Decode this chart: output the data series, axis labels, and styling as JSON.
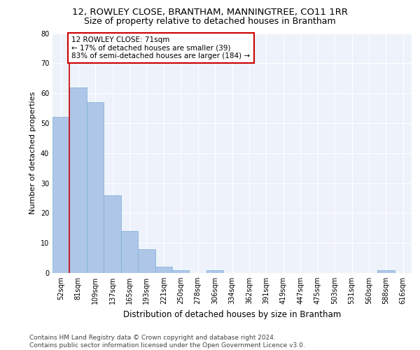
{
  "title1": "12, ROWLEY CLOSE, BRANTHAM, MANNINGTREE, CO11 1RR",
  "title2": "Size of property relative to detached houses in Brantham",
  "xlabel": "Distribution of detached houses by size in Brantham",
  "ylabel": "Number of detached properties",
  "categories": [
    "52sqm",
    "81sqm",
    "109sqm",
    "137sqm",
    "165sqm",
    "193sqm",
    "221sqm",
    "250sqm",
    "278sqm",
    "306sqm",
    "334sqm",
    "362sqm",
    "391sqm",
    "419sqm",
    "447sqm",
    "475sqm",
    "503sqm",
    "531sqm",
    "560sqm",
    "588sqm",
    "616sqm"
  ],
  "values": [
    52,
    62,
    57,
    26,
    14,
    8,
    2,
    1,
    0,
    1,
    0,
    0,
    0,
    0,
    0,
    0,
    0,
    0,
    0,
    1,
    0
  ],
  "bar_color": "#aec6e8",
  "bar_edge_color": "#7aafd4",
  "annotation_box_text": "12 ROWLEY CLOSE: 71sqm\n← 17% of detached houses are smaller (39)\n83% of semi-detached houses are larger (184) →",
  "annotation_box_color": "#ffffff",
  "annotation_box_edge_color": "#cc0000",
  "vline_color": "#cc0000",
  "vline_x_index": 1,
  "ylim": [
    0,
    80
  ],
  "yticks": [
    0,
    10,
    20,
    30,
    40,
    50,
    60,
    70,
    80
  ],
  "background_color": "#eef2fa",
  "footer_text": "Contains HM Land Registry data © Crown copyright and database right 2024.\nContains public sector information licensed under the Open Government Licence v3.0.",
  "title1_fontsize": 9.5,
  "title2_fontsize": 9,
  "xlabel_fontsize": 8.5,
  "ylabel_fontsize": 8,
  "tick_fontsize": 7,
  "annotation_fontsize": 7.5,
  "footer_fontsize": 6.5
}
